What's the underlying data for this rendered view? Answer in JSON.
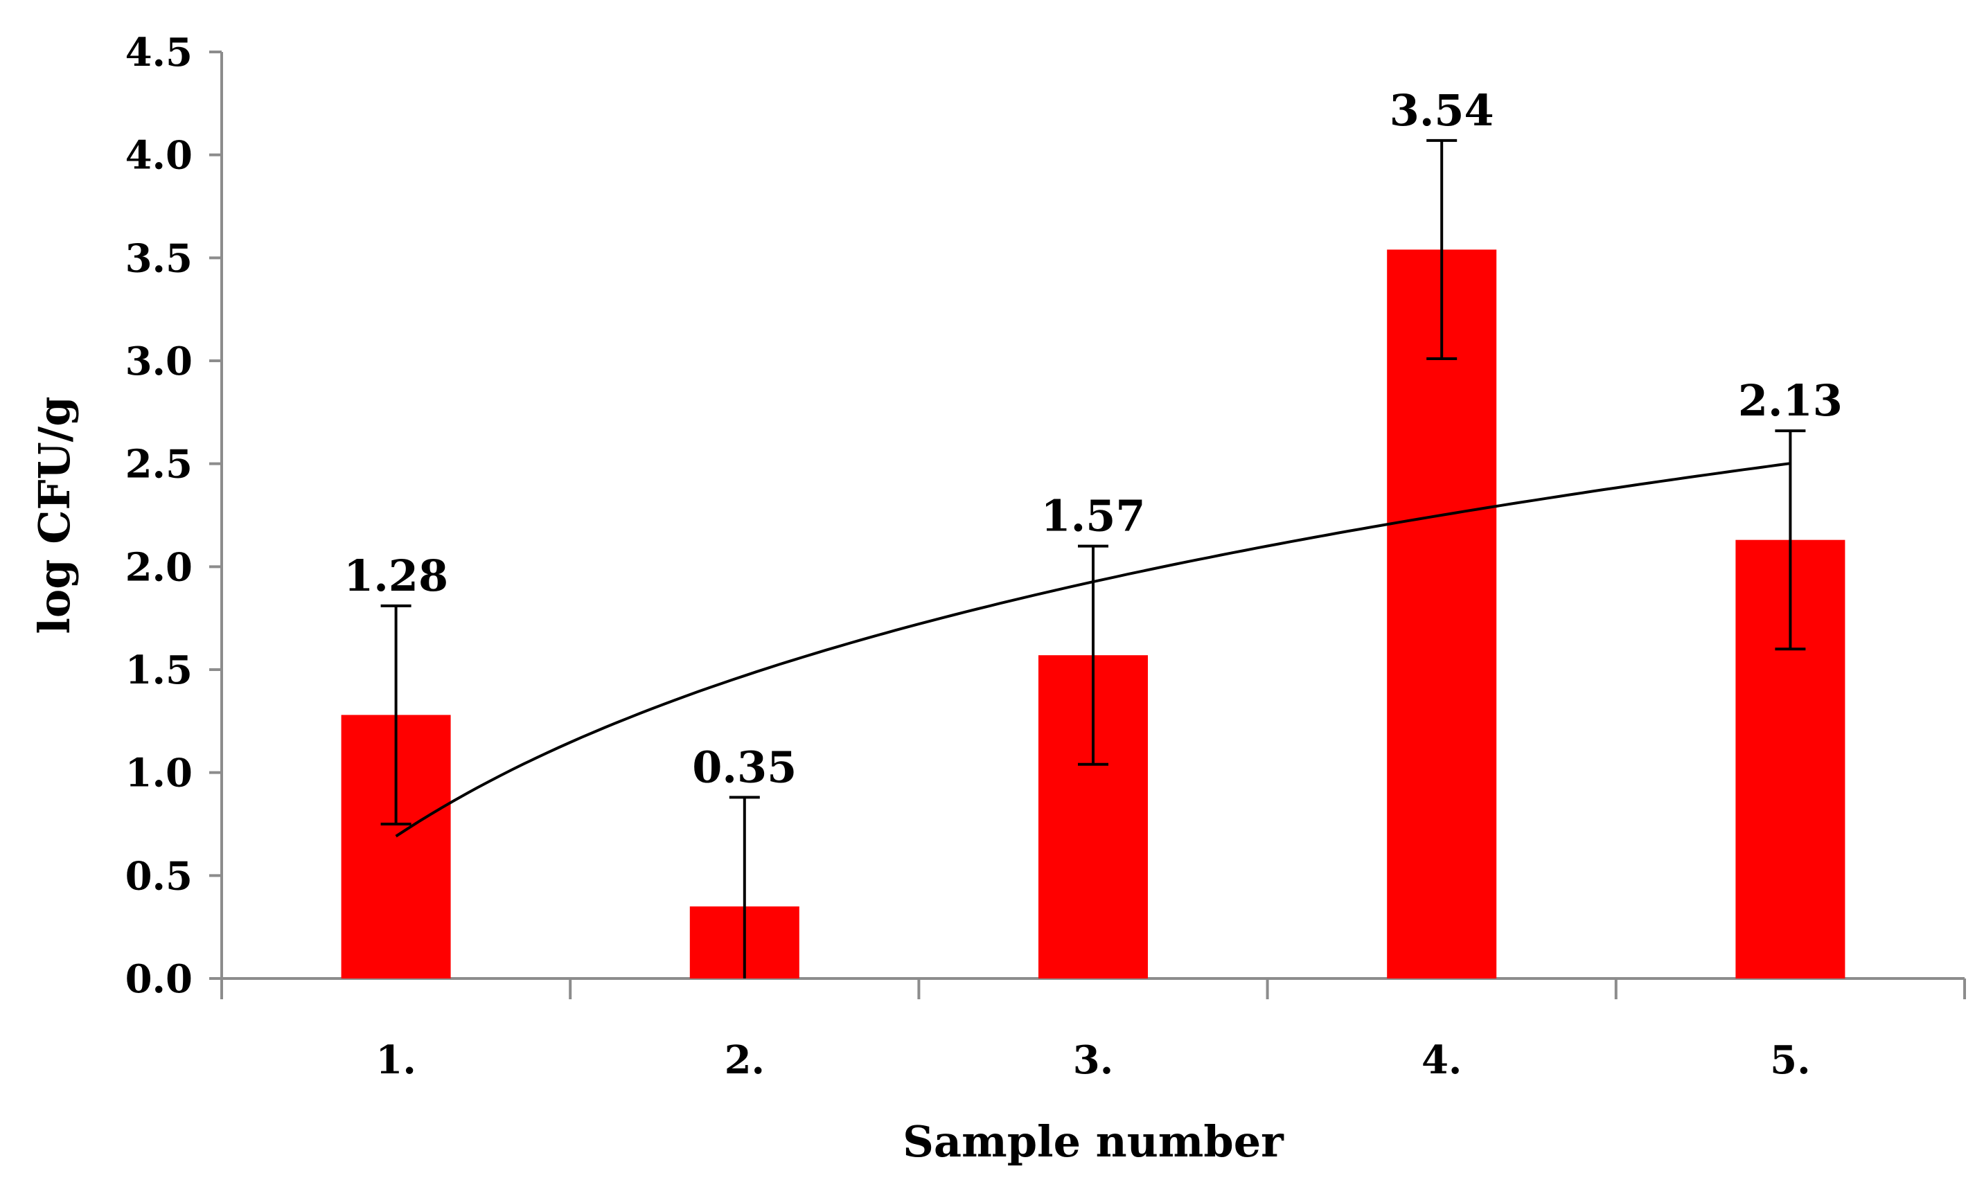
{
  "chart_data": {
    "type": "bar",
    "title": "",
    "xlabel": "Sample number",
    "ylabel": "log CFU/g",
    "categories": [
      "1.",
      "2.",
      "3.",
      "4.",
      "5."
    ],
    "series": [
      {
        "values": [
          1.28,
          0.35,
          1.57,
          3.54,
          2.13
        ],
        "value_labels": [
          "1.28",
          "0.35",
          "1.57",
          "3.54",
          "2.13"
        ],
        "error": [
          0.53,
          0.53,
          0.53,
          0.53,
          0.53
        ],
        "color": "#ff0000"
      }
    ],
    "trendline": {
      "type": "logarithmic",
      "color": "#000000",
      "points": [
        [
          1,
          0.7
        ],
        [
          2,
          1.45
        ],
        [
          3,
          1.93
        ],
        [
          4,
          2.26
        ],
        [
          5,
          2.5
        ]
      ]
    },
    "ylim": [
      0,
      4.5
    ],
    "yticks": [
      "0.0",
      "0.5",
      "1.0",
      "1.5",
      "2.0",
      "2.5",
      "3.0",
      "3.5",
      "4.0",
      "4.5"
    ],
    "grid": false,
    "legend": "none"
  }
}
